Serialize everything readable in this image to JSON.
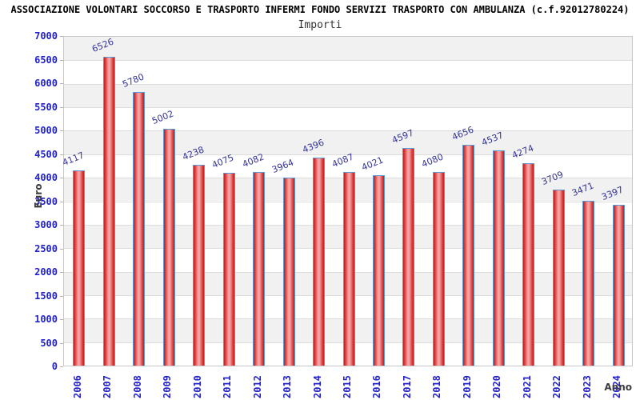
{
  "header": {
    "title": "ASSOCIAZIONE VOLONTARI SOCCORSO E TRASPORTO INFERMI FONDO SERVIZI TRASPORTO CON AMBULANZA (c.f.92012780224)",
    "subtitle": "Importi"
  },
  "chart_data": {
    "type": "bar",
    "title": "Importi",
    "xlabel": "Anno",
    "ylabel": "Euro",
    "categories": [
      "2006",
      "2007",
      "2008",
      "2009",
      "2010",
      "2011",
      "2012",
      "2013",
      "2014",
      "2015",
      "2016",
      "2017",
      "2018",
      "2019",
      "2020",
      "2021",
      "2022",
      "2023",
      "2024"
    ],
    "values": [
      4117,
      6526,
      5780,
      5002,
      4238,
      4075,
      4082,
      3964,
      4396,
      4087,
      4021,
      4597,
      4080,
      4656,
      4537,
      4274,
      3709,
      3471,
      3397
    ],
    "ylim": [
      0,
      7000
    ],
    "ytick_step": 500,
    "yticks": [
      0,
      500,
      1000,
      1500,
      2000,
      2500,
      3000,
      3500,
      4000,
      4500,
      5000,
      5500,
      6000,
      6500,
      7000
    ],
    "grid": "horizontal alternating bands",
    "legend_position": "none",
    "colors": {
      "bar_edge": "#c21e1e",
      "bar_highlight": "#f6abab",
      "bar_border": "#5b9bd5",
      "tick_label": "#2222cc",
      "value_label": "#333399",
      "band_gray": "#f1f1f1",
      "band_white": "#ffffff",
      "gridline": "#dcdcdc",
      "axis_title": "#3c3c3c",
      "title": "#000000"
    }
  }
}
